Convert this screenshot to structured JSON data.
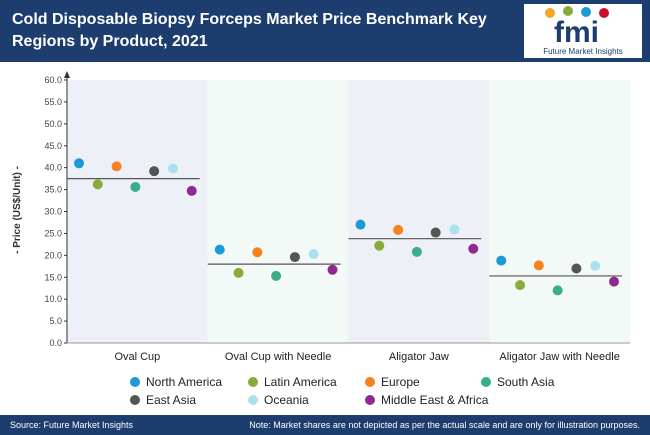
{
  "header": {
    "title": "Cold Disposable Biopsy Forceps Market Price Benchmark Key Regions by Product, 2021",
    "logo_letters": "fmi",
    "logo_text": "Future Market Insights"
  },
  "colors": {
    "header_bg": "#1c3d6e",
    "band_shaded": "#eef0f7",
    "band_plain": "#f3f9f7",
    "average_line": "#555555"
  },
  "chart_data": {
    "type": "scatter",
    "title": "Cold Disposable Biopsy Forceps Market Price Benchmark Key Regions by Product, 2021",
    "ylabel": "- Price (US$/Unit) -",
    "xlabel": "",
    "ylim": [
      0,
      60
    ],
    "yticks": [
      "0.0",
      "5.0",
      "10.0",
      "15.0",
      "20.0",
      "25.0",
      "30.0",
      "35.0",
      "40.0",
      "45.0",
      "50.0",
      "55.0",
      "60.0"
    ],
    "categories": [
      "Oval Cup",
      "Oval Cup with Needle",
      "Aligator Jaw",
      "Aligator Jaw with Needle"
    ],
    "averages": [
      37.5,
      18,
      23.8,
      15.3
    ],
    "grid": false,
    "legend_position": "bottom",
    "series": [
      {
        "name": "North America",
        "color": "#1c9ad6",
        "values": [
          41,
          21.3,
          27,
          18.8
        ]
      },
      {
        "name": "Latin America",
        "color": "#8aaa3a",
        "values": [
          36.2,
          16,
          22.2,
          13.2
        ]
      },
      {
        "name": "Europe",
        "color": "#f5821f",
        "values": [
          40.3,
          20.7,
          25.8,
          17.7
        ]
      },
      {
        "name": "South Asia",
        "color": "#3aae8a",
        "values": [
          35.6,
          15.3,
          20.8,
          12
        ]
      },
      {
        "name": "East Asia",
        "color": "#555555",
        "values": [
          39.2,
          19.6,
          25.2,
          17
        ]
      },
      {
        "name": "Oceania",
        "color": "#a9e2ea",
        "values": [
          39.8,
          20.3,
          25.9,
          17.6
        ]
      },
      {
        "name": "Middle East & Africa",
        "color": "#8e2a8e",
        "values": [
          34.7,
          16.7,
          21.5,
          14
        ]
      }
    ]
  },
  "footer": {
    "source": "Source: Future Market Insights",
    "note": "Note: Market shares are not depicted as per the actual scale and are only for illustration purposes."
  }
}
